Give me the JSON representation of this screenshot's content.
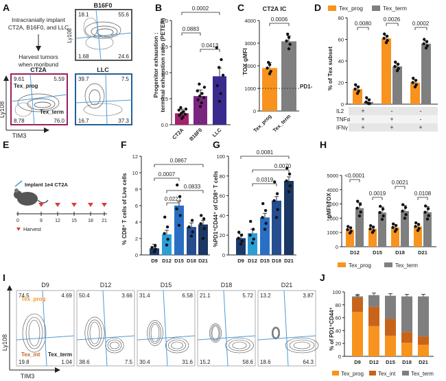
{
  "colors": {
    "prog": "#f7931e",
    "term": "#7f7f7f",
    "int": "#c8641a",
    "cd8_d9": "#1a3a6b",
    "cd8_d12": "#2a9fd8",
    "cd8_d15": "#2a6fc4",
    "cd8_d18": "#244e8f",
    "cd8_d21": "#1c3763",
    "ct2a_box": "#9b1d5a",
    "llc_box": "#1f5f99",
    "b16_box": "#555555",
    "gate_line": "#4a9ad8",
    "peter_ct2a": "#a3226b",
    "peter_b16": "#7a2680",
    "peter_llc": "#3a2a8e"
  },
  "panel_letters": [
    "A",
    "B",
    "C",
    "D",
    "E",
    "F",
    "G",
    "H",
    "I",
    "J"
  ],
  "panel_a": {
    "implant_text": [
      "Intracranially implant",
      "CT2A, B16F0, and LLC"
    ],
    "harvest_text": [
      "Harvest tumors",
      "when moribund"
    ],
    "x_axis": "TIM3",
    "y_axis": "Ly108",
    "b16": {
      "title": "B16F0",
      "q": [
        "18.1",
        "55.6",
        "1.68",
        "24.6"
      ]
    },
    "ct2a": {
      "title": "CT2A",
      "q": [
        "9.61",
        "5.59",
        "8.78",
        "76.0"
      ],
      "prog_label": "Tex_prog",
      "term_label": "Tex_term"
    },
    "llc": {
      "title": "LLC",
      "q": [
        "39.7",
        "7.5",
        "16.7",
        "37.3"
      ]
    }
  },
  "panel_b": {
    "ylabel": [
      "Progenitor exhaustion :",
      "terminal exhaustion ratio (PETER)"
    ],
    "pvalues": [
      "0.0002",
      "0.0883",
      "0.0413"
    ]
  },
  "panel_c": {
    "title": "CT2A IC",
    "ylabel": "TOX gMFI",
    "pvalue": "0.0006",
    "ref_label": "PD1-"
  },
  "panel_d": {
    "legend": [
      "Tex_prog",
      "Tex_term"
    ],
    "ylabel": "% of Tex subset",
    "pvalues": [
      "0.0080",
      "0.0026",
      "0.0002"
    ],
    "row_labels": [
      "IL2",
      "TNFα",
      "IFNγ"
    ],
    "signs": [
      [
        "+",
        "-",
        "-"
      ],
      [
        "+",
        "+",
        "-"
      ],
      [
        "+",
        "+",
        "+"
      ]
    ]
  },
  "panel_e": {
    "implant": "Implant 1e4 CT2A",
    "harvest": "Harvest",
    "ticks": [
      "0",
      "9",
      "12",
      "15",
      "18",
      "21"
    ]
  },
  "panel_f": {
    "ylabel": "% CD8⁺ T cells of Live cells",
    "pvalues": [
      "0.0867",
      "0.0007",
      "0.0833",
      "0.0221"
    ]
  },
  "panel_g": {
    "ylabel": "%PD1⁺CD44⁺ of CD8⁺ T cells",
    "pvalues": [
      "0.0081",
      "0.0070",
      "0.0319"
    ]
  },
  "panel_h": {
    "legend": [
      "Tex_prog",
      "Tex_term"
    ],
    "ylabel": "gMFI TOX",
    "pvalues": [
      "<0.0001",
      "0.0019",
      "0.0021",
      "0.0108"
    ]
  },
  "panel_i": {
    "x_axis": "TIM3",
    "y_axis": "Ly108",
    "prog_label": "Tex_prog",
    "int_label": "Tex_int",
    "term_label": "Tex_term",
    "plots": [
      {
        "day": "D9",
        "q": [
          "74.5",
          "4.69",
          "19.8",
          "1.04"
        ]
      },
      {
        "day": "D12",
        "q": [
          "50.4",
          "3.66",
          "38.6",
          "7.5"
        ]
      },
      {
        "day": "D15",
        "q": [
          "31.4",
          "6.58",
          "30.4",
          "31.6"
        ]
      },
      {
        "day": "D18",
        "q": [
          "21.1",
          "5.72",
          "15.2",
          "58.6"
        ]
      },
      {
        "day": "D21",
        "q": [
          "13.2",
          "3.87",
          "18.6",
          "64.3"
        ]
      }
    ]
  },
  "panel_j": {
    "ylabel": "% of PD1⁺CD44⁺",
    "legend": [
      "Tex_prog",
      "Tex_int",
      "Tex_term"
    ]
  },
  "chart_data": [
    {
      "panel": "B",
      "type": "bar",
      "categories": [
        "CT2A",
        "B16F0",
        "LLC"
      ],
      "values": [
        0.22,
        0.55,
        0.93
      ],
      "ylim": [
        0,
        2.0
      ],
      "yticks": [
        "0.0",
        "0.5",
        "1.0",
        "1.5",
        "2.0"
      ],
      "points": [
        [
          0.12,
          0.15,
          0.18,
          0.2,
          0.22,
          0.25,
          0.28,
          0.3,
          0.33
        ],
        [
          0.35,
          0.42,
          0.48,
          0.52,
          0.55,
          0.6,
          0.65,
          0.72,
          0.78
        ],
        [
          0.45,
          0.6,
          0.75,
          0.95,
          1.1,
          1.25,
          1.48
        ]
      ]
    },
    {
      "panel": "C",
      "type": "bar",
      "categories": [
        "Tex_prog",
        "Tex_term"
      ],
      "values": [
        1900,
        3080
      ],
      "ylim": [
        0,
        4000
      ],
      "yticks": [
        "0",
        "1000",
        "2000",
        "3000",
        "4000"
      ],
      "ref_value": 1000,
      "points": [
        [
          1650,
          1750,
          1900,
          2050,
          2150
        ],
        [
          2750,
          2950,
          3100,
          3250,
          3400
        ]
      ]
    },
    {
      "panel": "D",
      "type": "bar",
      "categories": [
        "IL2+ TNFα+ IFNγ+",
        "IL2- TNFα+ IFNγ+",
        "IL2- TNFα- IFNγ+"
      ],
      "series": [
        {
          "name": "Tex_prog",
          "values": [
            14,
            61,
            20
          ]
        },
        {
          "name": "Tex_term",
          "values": [
            2,
            35,
            56
          ]
        }
      ],
      "ylim": [
        0,
        80
      ],
      "yticks": [
        "0",
        "20",
        "40",
        "60",
        "80"
      ]
    },
    {
      "panel": "F",
      "type": "bar",
      "categories": [
        "D9",
        "D12",
        "D15",
        "D18",
        "D21"
      ],
      "values": [
        0.8,
        2.5,
        6.0,
        3.4,
        3.7
      ],
      "ylim": [
        0,
        12
      ],
      "yticks": [
        "0",
        "2",
        "4",
        "6",
        "8",
        "10",
        "12"
      ],
      "points": [
        [
          0.4,
          0.7,
          0.9,
          1.1
        ],
        [
          1.2,
          1.9,
          2.6,
          3.4,
          4.6
        ],
        [
          3.6,
          4.8,
          5.6,
          7.1,
          8.5
        ],
        [
          2.3,
          2.8,
          3.4,
          4.2
        ],
        [
          2.0,
          3.2,
          3.8,
          4.4,
          4.8
        ]
      ]
    },
    {
      "panel": "G",
      "type": "bar",
      "categories": [
        "D9",
        "D12",
        "D15",
        "D18",
        "D21"
      ],
      "values": [
        17,
        22,
        38,
        55,
        75
      ],
      "ylim": [
        0,
        100
      ],
      "yticks": [
        "0",
        "20",
        "40",
        "60",
        "80",
        "100"
      ],
      "points": [
        [
          11,
          14,
          17,
          20,
          23
        ],
        [
          12,
          16,
          20,
          26,
          34
        ],
        [
          26,
          32,
          38,
          45,
          52
        ],
        [
          38,
          46,
          55,
          62,
          74
        ],
        [
          64,
          70,
          75,
          82,
          88
        ]
      ]
    },
    {
      "panel": "H",
      "type": "bar",
      "categories": [
        "D12",
        "D15",
        "D18",
        "D21"
      ],
      "series": [
        {
          "name": "Tex_prog",
          "values": [
            1200,
            1250,
            1350,
            1420
          ]
        },
        {
          "name": "Tex_term",
          "values": [
            2700,
            2400,
            2500,
            2420
          ]
        }
      ],
      "ylim": [
        0,
        5000
      ],
      "yticks": [
        "0",
        "1000",
        "2000",
        "3000",
        "4000",
        "5000"
      ]
    },
    {
      "panel": "J",
      "type": "bar",
      "categories": [
        "D9",
        "D12",
        "D15",
        "D18",
        "D21"
      ],
      "series": [
        {
          "name": "Tex_prog",
          "values": [
            69,
            47,
            32,
            21,
            18
          ]
        },
        {
          "name": "Tex_int",
          "values": [
            22,
            30,
            26,
            17,
            13
          ]
        },
        {
          "name": "Tex_term",
          "values": [
            2,
            18,
            36,
            55,
            62
          ]
        }
      ],
      "ylim": [
        0,
        100
      ],
      "yticks": [
        "0",
        "20",
        "40",
        "60",
        "80",
        "100"
      ]
    }
  ]
}
